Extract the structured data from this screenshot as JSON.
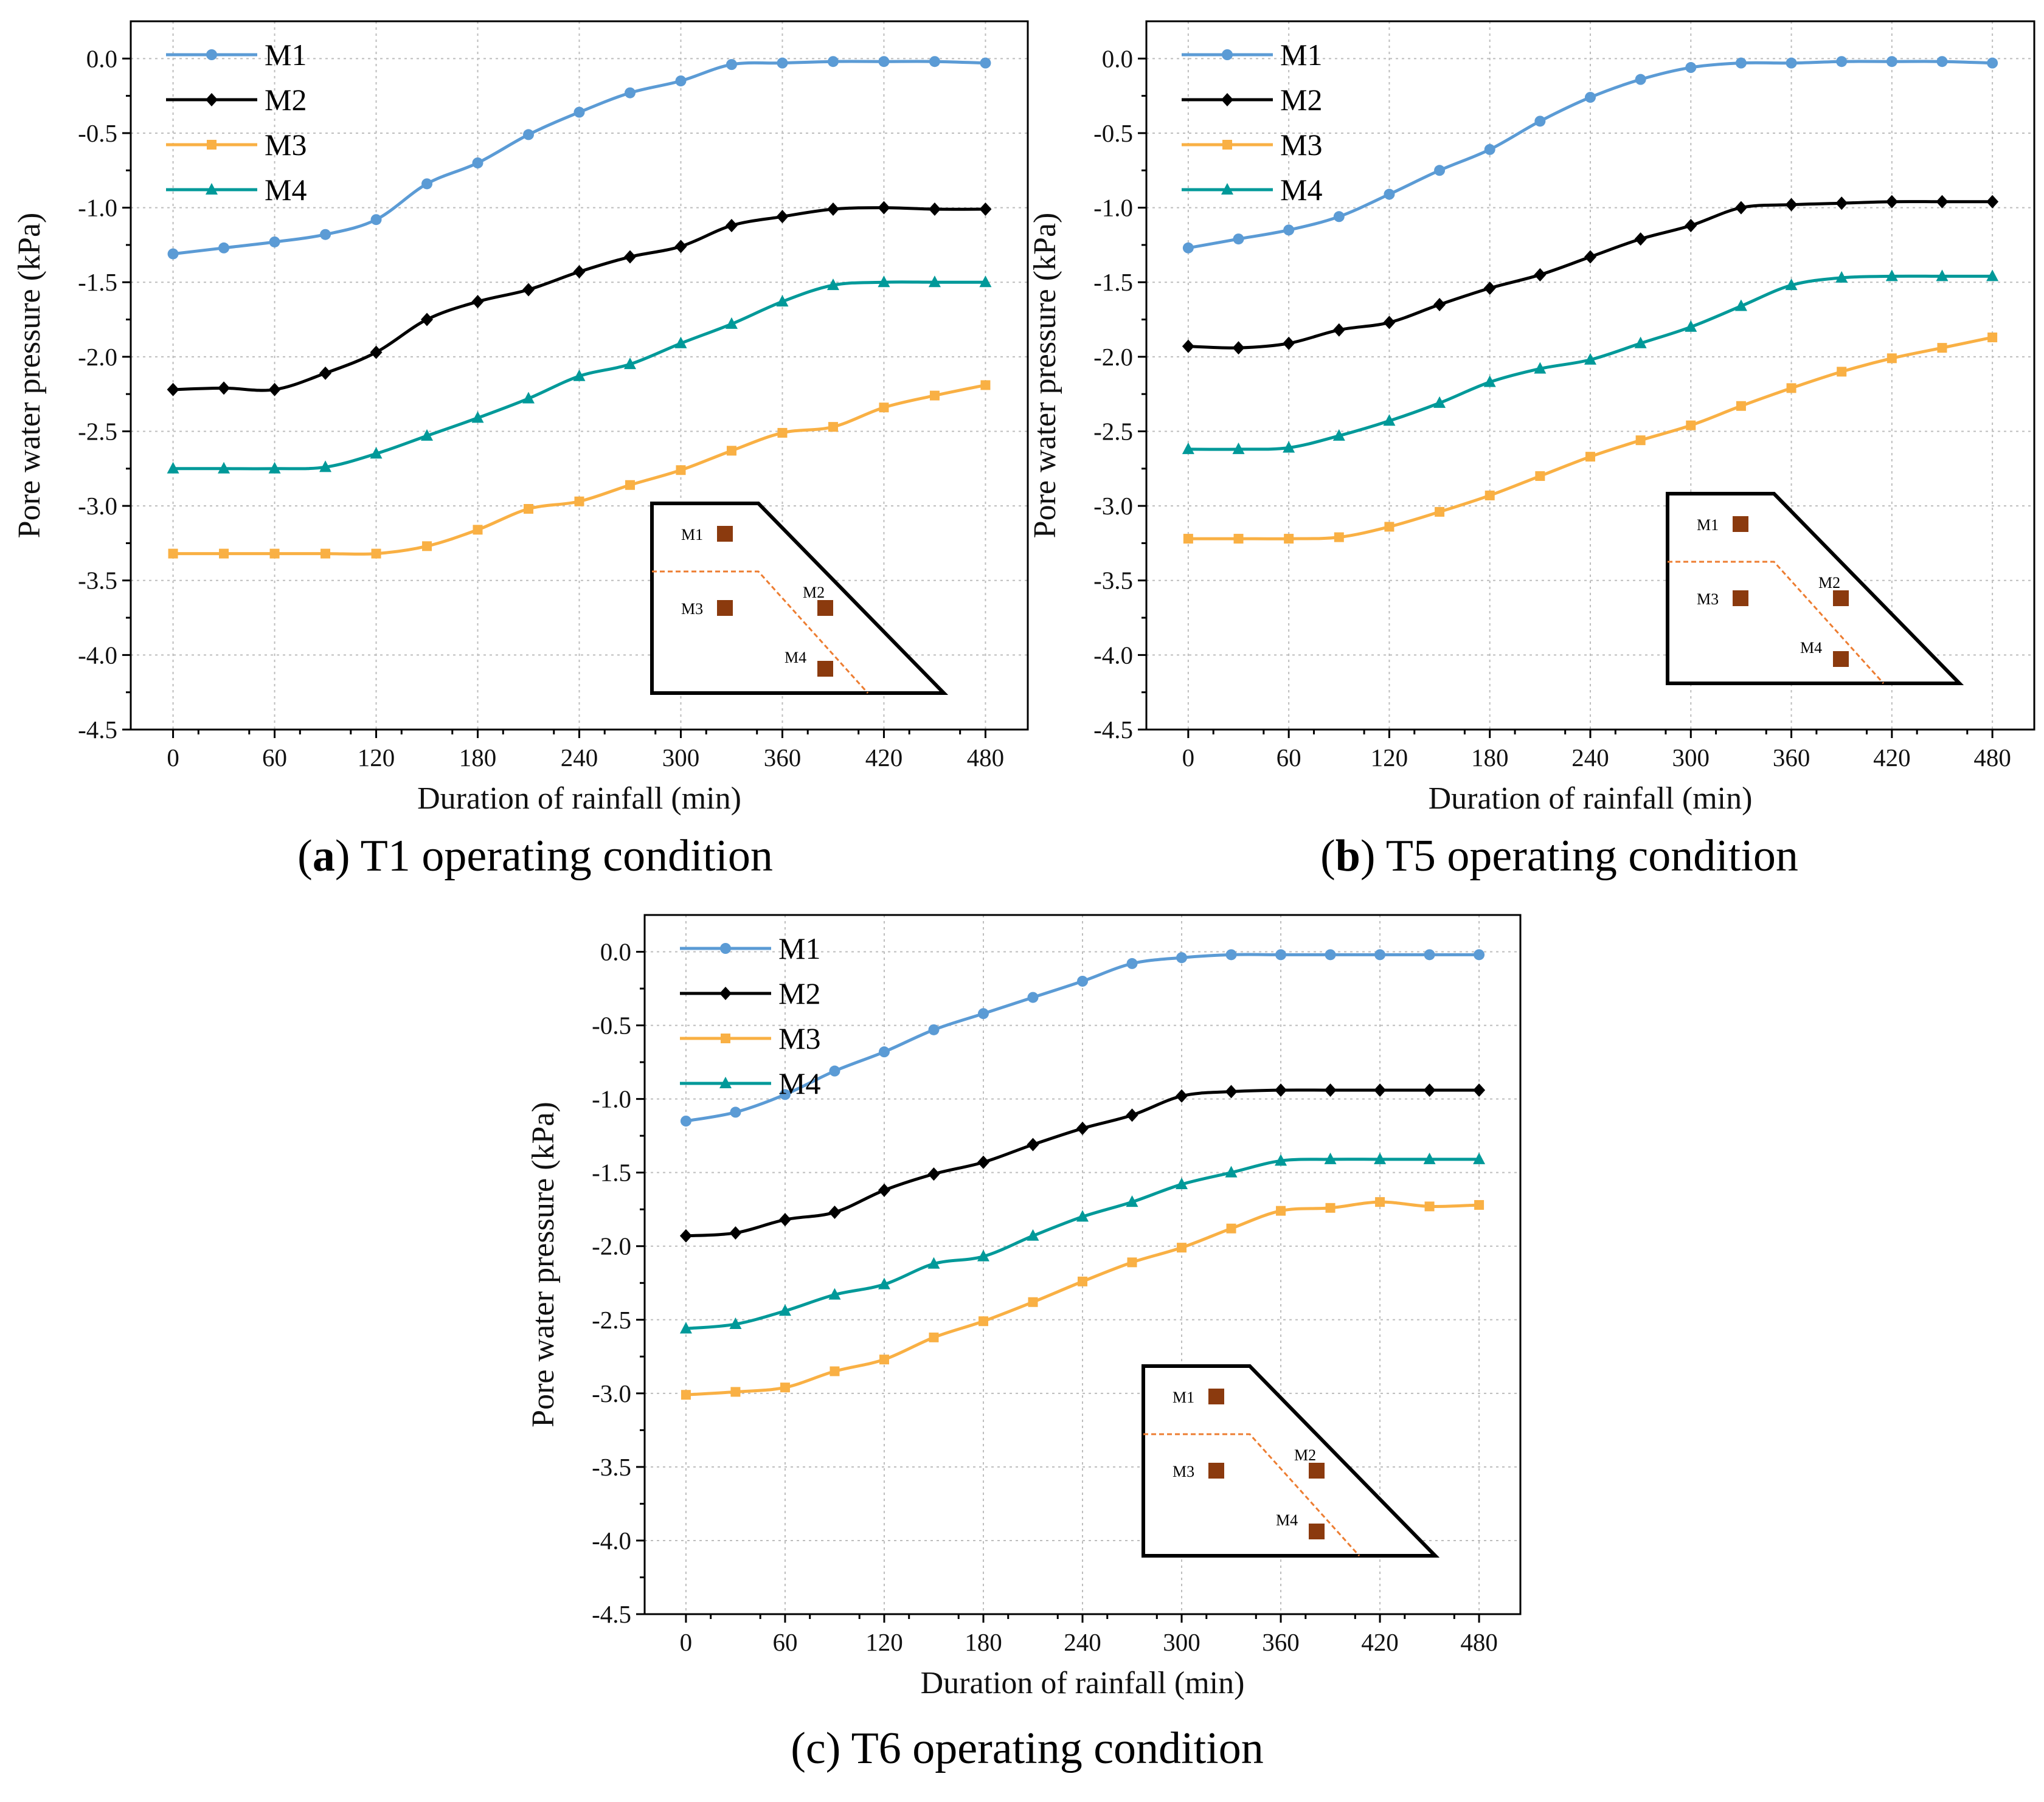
{
  "series_colors": {
    "M1": "#5b9bd5",
    "M2": "#000000",
    "M3": "#f9b044",
    "M4": "#009999"
  },
  "inset_marker_color": "#8b3a0e",
  "inset_line_color": "#ed7d31",
  "chart_data": [
    {
      "type": "line",
      "caption": {
        "letter": "a",
        "text": "T1 operating condition"
      },
      "xlabel": "Duration of rainfall (min)",
      "ylabel": "Pore water pressure (kPa)",
      "xlim": [
        -25,
        505
      ],
      "ylim": [
        -4.5,
        0.25
      ],
      "xticks": [
        "0",
        "60",
        "120",
        "180",
        "240",
        "300",
        "360",
        "420",
        "480"
      ],
      "yticks": [
        "0.0",
        "-0.5",
        "-1.0",
        "-1.5",
        "-2.0",
        "-2.5",
        "-3.0",
        "-3.5",
        "-4.0",
        "-4.5"
      ],
      "grid": true,
      "legend": "top-left",
      "x": [
        0,
        30,
        60,
        90,
        120,
        150,
        180,
        210,
        240,
        270,
        300,
        330,
        360,
        390,
        420,
        450,
        480
      ],
      "series": [
        {
          "name": "M1",
          "marker": "circle",
          "values": [
            -1.31,
            -1.27,
            -1.23,
            -1.18,
            -1.08,
            -0.84,
            -0.7,
            -0.51,
            -0.36,
            -0.23,
            -0.15,
            -0.04,
            -0.03,
            -0.02,
            -0.02,
            -0.02,
            -0.03
          ]
        },
        {
          "name": "M2",
          "marker": "diamond",
          "values": [
            -2.22,
            -2.21,
            -2.22,
            -2.11,
            -1.97,
            -1.75,
            -1.63,
            -1.55,
            -1.43,
            -1.33,
            -1.26,
            -1.12,
            -1.06,
            -1.01,
            -1.0,
            -1.01,
            -1.01
          ]
        },
        {
          "name": "M3",
          "marker": "square",
          "values": [
            -3.32,
            -3.32,
            -3.32,
            -3.32,
            -3.32,
            -3.27,
            -3.16,
            -3.02,
            -2.97,
            -2.86,
            -2.76,
            -2.63,
            -2.51,
            -2.47,
            -2.34,
            -2.26,
            -2.19
          ]
        },
        {
          "name": "M4",
          "marker": "triangle",
          "values": [
            -2.75,
            -2.75,
            -2.75,
            -2.74,
            -2.65,
            -2.53,
            -2.41,
            -2.28,
            -2.13,
            -2.05,
            -1.91,
            -1.78,
            -1.63,
            -1.52,
            -1.5,
            -1.5,
            -1.5
          ]
        }
      ],
      "inset_labels": [
        "M1",
        "M2",
        "M3",
        "M4"
      ]
    },
    {
      "type": "line",
      "caption": {
        "letter": "b",
        "text": "T5 operating condition"
      },
      "xlabel": "Duration of rainfall (min)",
      "ylabel": "Pore water pressure (kPa)",
      "xlim": [
        -25,
        505
      ],
      "ylim": [
        -4.5,
        0.25
      ],
      "xticks": [
        "0",
        "60",
        "120",
        "180",
        "240",
        "300",
        "360",
        "420",
        "480"
      ],
      "yticks": [
        "0.0",
        "-0.5",
        "-1.0",
        "-1.5",
        "-2.0",
        "-2.5",
        "-3.0",
        "-3.5",
        "-4.0",
        "-4.5"
      ],
      "grid": true,
      "legend": "top-left",
      "x": [
        0,
        30,
        60,
        90,
        120,
        150,
        180,
        210,
        240,
        270,
        300,
        330,
        360,
        390,
        420,
        450,
        480
      ],
      "series": [
        {
          "name": "M1",
          "marker": "circle",
          "values": [
            -1.27,
            -1.21,
            -1.15,
            -1.06,
            -0.91,
            -0.75,
            -0.61,
            -0.42,
            -0.26,
            -0.14,
            -0.06,
            -0.03,
            -0.03,
            -0.02,
            -0.02,
            -0.02,
            -0.03
          ]
        },
        {
          "name": "M2",
          "marker": "diamond",
          "values": [
            -1.93,
            -1.94,
            -1.91,
            -1.82,
            -1.77,
            -1.65,
            -1.54,
            -1.45,
            -1.33,
            -1.21,
            -1.12,
            -1.0,
            -0.98,
            -0.97,
            -0.96,
            -0.96,
            -0.96
          ]
        },
        {
          "name": "M3",
          "marker": "square",
          "values": [
            -3.22,
            -3.22,
            -3.22,
            -3.21,
            -3.14,
            -3.04,
            -2.93,
            -2.8,
            -2.67,
            -2.56,
            -2.46,
            -2.33,
            -2.21,
            -2.1,
            -2.01,
            -1.94,
            -1.87
          ]
        },
        {
          "name": "M4",
          "marker": "triangle",
          "values": [
            -2.62,
            -2.62,
            -2.61,
            -2.53,
            -2.43,
            -2.31,
            -2.17,
            -2.08,
            -2.02,
            -1.91,
            -1.8,
            -1.66,
            -1.52,
            -1.47,
            -1.46,
            -1.46,
            -1.46
          ]
        }
      ],
      "inset_labels": [
        "M1",
        "M2",
        "M3",
        "M4"
      ]
    },
    {
      "type": "line",
      "caption": {
        "letter": "c",
        "text": "T6 operating condition"
      },
      "xlabel": "Duration of rainfall (min)",
      "ylabel": "Pore water pressure (kPa)",
      "xlim": [
        -25,
        505
      ],
      "ylim": [
        -4.5,
        0.25
      ],
      "xticks": [
        "0",
        "60",
        "120",
        "180",
        "240",
        "300",
        "360",
        "420",
        "480"
      ],
      "yticks": [
        "0.0",
        "-0.5",
        "-1.0",
        "-1.5",
        "-2.0",
        "-2.5",
        "-3.0",
        "-3.5",
        "-4.0",
        "-4.5"
      ],
      "grid": true,
      "legend": "top-left",
      "x": [
        0,
        30,
        60,
        90,
        120,
        150,
        180,
        210,
        240,
        270,
        300,
        330,
        360,
        390,
        420,
        450,
        480
      ],
      "series": [
        {
          "name": "M1",
          "marker": "circle",
          "values": [
            -1.15,
            -1.09,
            -0.97,
            -0.81,
            -0.68,
            -0.53,
            -0.42,
            -0.31,
            -0.2,
            -0.08,
            -0.04,
            -0.02,
            -0.02,
            -0.02,
            -0.02,
            -0.02,
            -0.02
          ]
        },
        {
          "name": "M2",
          "marker": "diamond",
          "values": [
            -1.93,
            -1.91,
            -1.82,
            -1.77,
            -1.62,
            -1.51,
            -1.43,
            -1.31,
            -1.2,
            -1.11,
            -0.98,
            -0.95,
            -0.94,
            -0.94,
            -0.94,
            -0.94,
            -0.94
          ]
        },
        {
          "name": "M3",
          "marker": "square",
          "values": [
            -3.01,
            -2.99,
            -2.96,
            -2.85,
            -2.77,
            -2.62,
            -2.51,
            -2.38,
            -2.24,
            -2.11,
            -2.01,
            -1.88,
            -1.76,
            -1.74,
            -1.7,
            -1.73,
            -1.72
          ]
        },
        {
          "name": "M4",
          "marker": "triangle",
          "values": [
            -2.56,
            -2.53,
            -2.44,
            -2.33,
            -2.26,
            -2.12,
            -2.07,
            -1.93,
            -1.8,
            -1.7,
            -1.58,
            -1.5,
            -1.42,
            -1.41,
            -1.41,
            -1.41,
            -1.41
          ]
        }
      ],
      "inset_labels": [
        "M1",
        "M2",
        "M3",
        "M4"
      ]
    }
  ]
}
